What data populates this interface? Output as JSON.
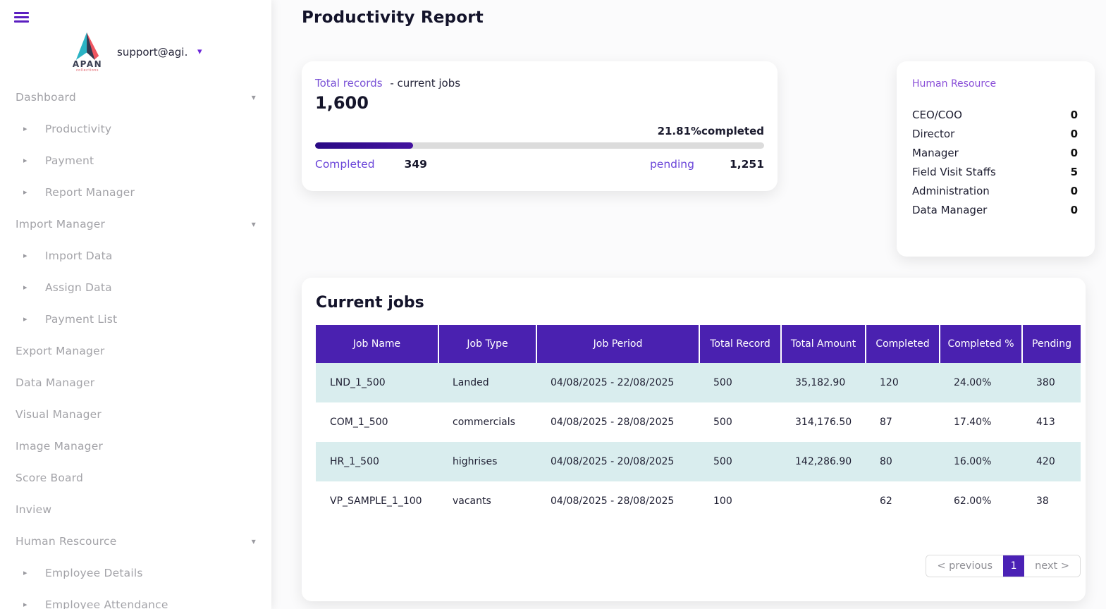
{
  "brand": {
    "email": "support@agi…",
    "logo_title": "APAN",
    "logo_subtitle": "collections"
  },
  "sidebar": {
    "items": [
      {
        "label": "Dashboard",
        "type": "group"
      },
      {
        "label": "Productivity",
        "type": "child"
      },
      {
        "label": "Payment",
        "type": "child"
      },
      {
        "label": "Report Manager",
        "type": "child"
      },
      {
        "label": "Import Manager",
        "type": "group"
      },
      {
        "label": "Import Data",
        "type": "child"
      },
      {
        "label": "Assign Data",
        "type": "child"
      },
      {
        "label": "Payment List",
        "type": "child"
      },
      {
        "label": "Export Manager",
        "type": "plain"
      },
      {
        "label": "Data Manager",
        "type": "plain"
      },
      {
        "label": "Visual Manager",
        "type": "plain"
      },
      {
        "label": "Image Manager",
        "type": "plain"
      },
      {
        "label": "Score Board",
        "type": "plain"
      },
      {
        "label": "Inview",
        "type": "plain"
      },
      {
        "label": "Human Rescource",
        "type": "group"
      },
      {
        "label": "Employee Details",
        "type": "child"
      },
      {
        "label": "Employee Attendance",
        "type": "child"
      }
    ]
  },
  "page": {
    "title": "Productivity Report"
  },
  "stats_card": {
    "link_label": "Total records",
    "sub_label": "- current jobs",
    "total": "1,600",
    "percent": 21.81,
    "percent_label": "21.81%completed",
    "completed_label": "Completed",
    "completed_value": "349",
    "pending_label": "pending",
    "pending_value": "1,251"
  },
  "hr_card": {
    "title": "Human Resource",
    "rows": [
      {
        "label": "CEO/COO",
        "value": "0"
      },
      {
        "label": "Director",
        "value": "0"
      },
      {
        "label": "Manager",
        "value": "0"
      },
      {
        "label": "Field Visit Staffs",
        "value": "5"
      },
      {
        "label": "Administration",
        "value": "0"
      },
      {
        "label": "Data Manager",
        "value": "0"
      }
    ]
  },
  "jobs_card": {
    "title": "Current jobs",
    "columns": [
      "Job Name",
      "Job Type",
      "Job Period",
      "Total Record",
      "Total Amount",
      "Completed",
      "Completed %",
      "Pending"
    ],
    "rows": [
      [
        "LND_1_500",
        "Landed",
        "04/08/2025 - 22/08/2025",
        "500",
        "35,182.90",
        "120",
        "24.00%",
        "380"
      ],
      [
        "COM_1_500",
        "commercials",
        "04/08/2025 - 28/08/2025",
        "500",
        "314,176.50",
        "87",
        "17.40%",
        "413"
      ],
      [
        "HR_1_500",
        "highrises",
        "04/08/2025 - 20/08/2025",
        "500",
        "142,286.90",
        "80",
        "16.00%",
        "420"
      ],
      [
        "VP_SAMPLE_1_100",
        "vacants",
        "04/08/2025 - 28/08/2025",
        "100",
        "",
        "62",
        "62.00%",
        "38"
      ]
    ],
    "pagination": {
      "previous": "< previous",
      "current": "1",
      "next": "next >"
    }
  },
  "colors": {
    "accent_purple": "#4a21b0",
    "link_purple": "#7a52d6",
    "progress_fill": "#35109b",
    "row_alt_teal": "#d9edee",
    "logo_teal": "#2bb3c4",
    "logo_navy": "#333850",
    "logo_red": "#ef5560"
  }
}
